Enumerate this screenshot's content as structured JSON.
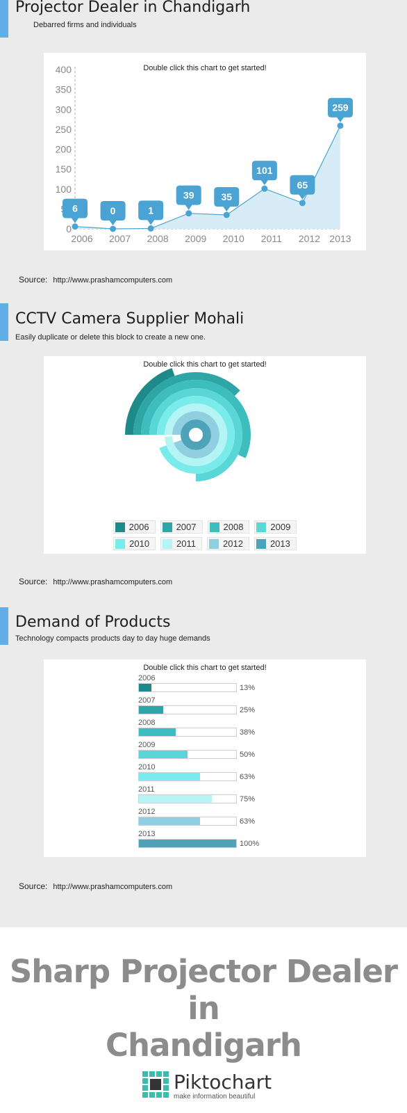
{
  "section1": {
    "title": "Projector Dealer in Chandigarh",
    "subtitle": "Debarred firms and individuals",
    "chart_hint": "Double click this chart to get started!",
    "source_label": "Source:",
    "source_url": "http://www.prashamcomputers.com"
  },
  "section2": {
    "title": "CCTV Camera Supplier Mohali",
    "subtitle": "Easily duplicate or delete this block to create a new one.",
    "chart_hint": "Double click this chart to get started!",
    "source_label": "Source:",
    "source_url": "http://www.prashamcomputers.com"
  },
  "section3": {
    "title": "Demand of Products",
    "subtitle": "Technology compacts products day to day huge demands",
    "chart_hint": "Double click this chart to get started!",
    "source_label": "Source:",
    "source_url": "http://www.prashamcomputers.com"
  },
  "footer": {
    "big_title_line1": "Sharp Projector Dealer in",
    "big_title_line2": "Chandigarh",
    "logo_name": "Piktochart",
    "logo_tagline": "make information beautiful"
  },
  "colors": {
    "accent": "#62aee6",
    "line": "#4aa3d3",
    "area": "#d8ecf7",
    "palette": [
      "#1f8a8a",
      "#2ea6a6",
      "#3dbdbd",
      "#5ad6d6",
      "#7aebeb",
      "#b5f4f4",
      "#8fcfe0",
      "#4fa3b8"
    ]
  },
  "chart_data": [
    {
      "type": "area",
      "categories": [
        "2006",
        "2007",
        "2008",
        "2009",
        "2010",
        "2011",
        "2012",
        "2013"
      ],
      "values": [
        6,
        0,
        1,
        39,
        35,
        101,
        65,
        259
      ],
      "yticks": [
        0,
        50,
        100,
        150,
        200,
        250,
        300,
        350,
        400
      ],
      "ylim": [
        0,
        400
      ],
      "data_labels": true
    },
    {
      "type": "radial-bar",
      "categories": [
        "2006",
        "2007",
        "2008",
        "2009",
        "2010",
        "2011",
        "2012",
        "2013"
      ],
      "values": [
        13,
        25,
        38,
        50,
        63,
        75,
        63,
        100
      ],
      "legend_position": "bottom"
    },
    {
      "type": "bar",
      "orientation": "horizontal",
      "categories": [
        "2006",
        "2007",
        "2008",
        "2009",
        "2010",
        "2011",
        "2012",
        "2013"
      ],
      "values": [
        13,
        25,
        38,
        50,
        63,
        75,
        63,
        100
      ],
      "labels": [
        "13%",
        "25%",
        "38%",
        "50%",
        "63%",
        "75%",
        "63%",
        "100%"
      ],
      "xlim": [
        0,
        100
      ]
    }
  ]
}
